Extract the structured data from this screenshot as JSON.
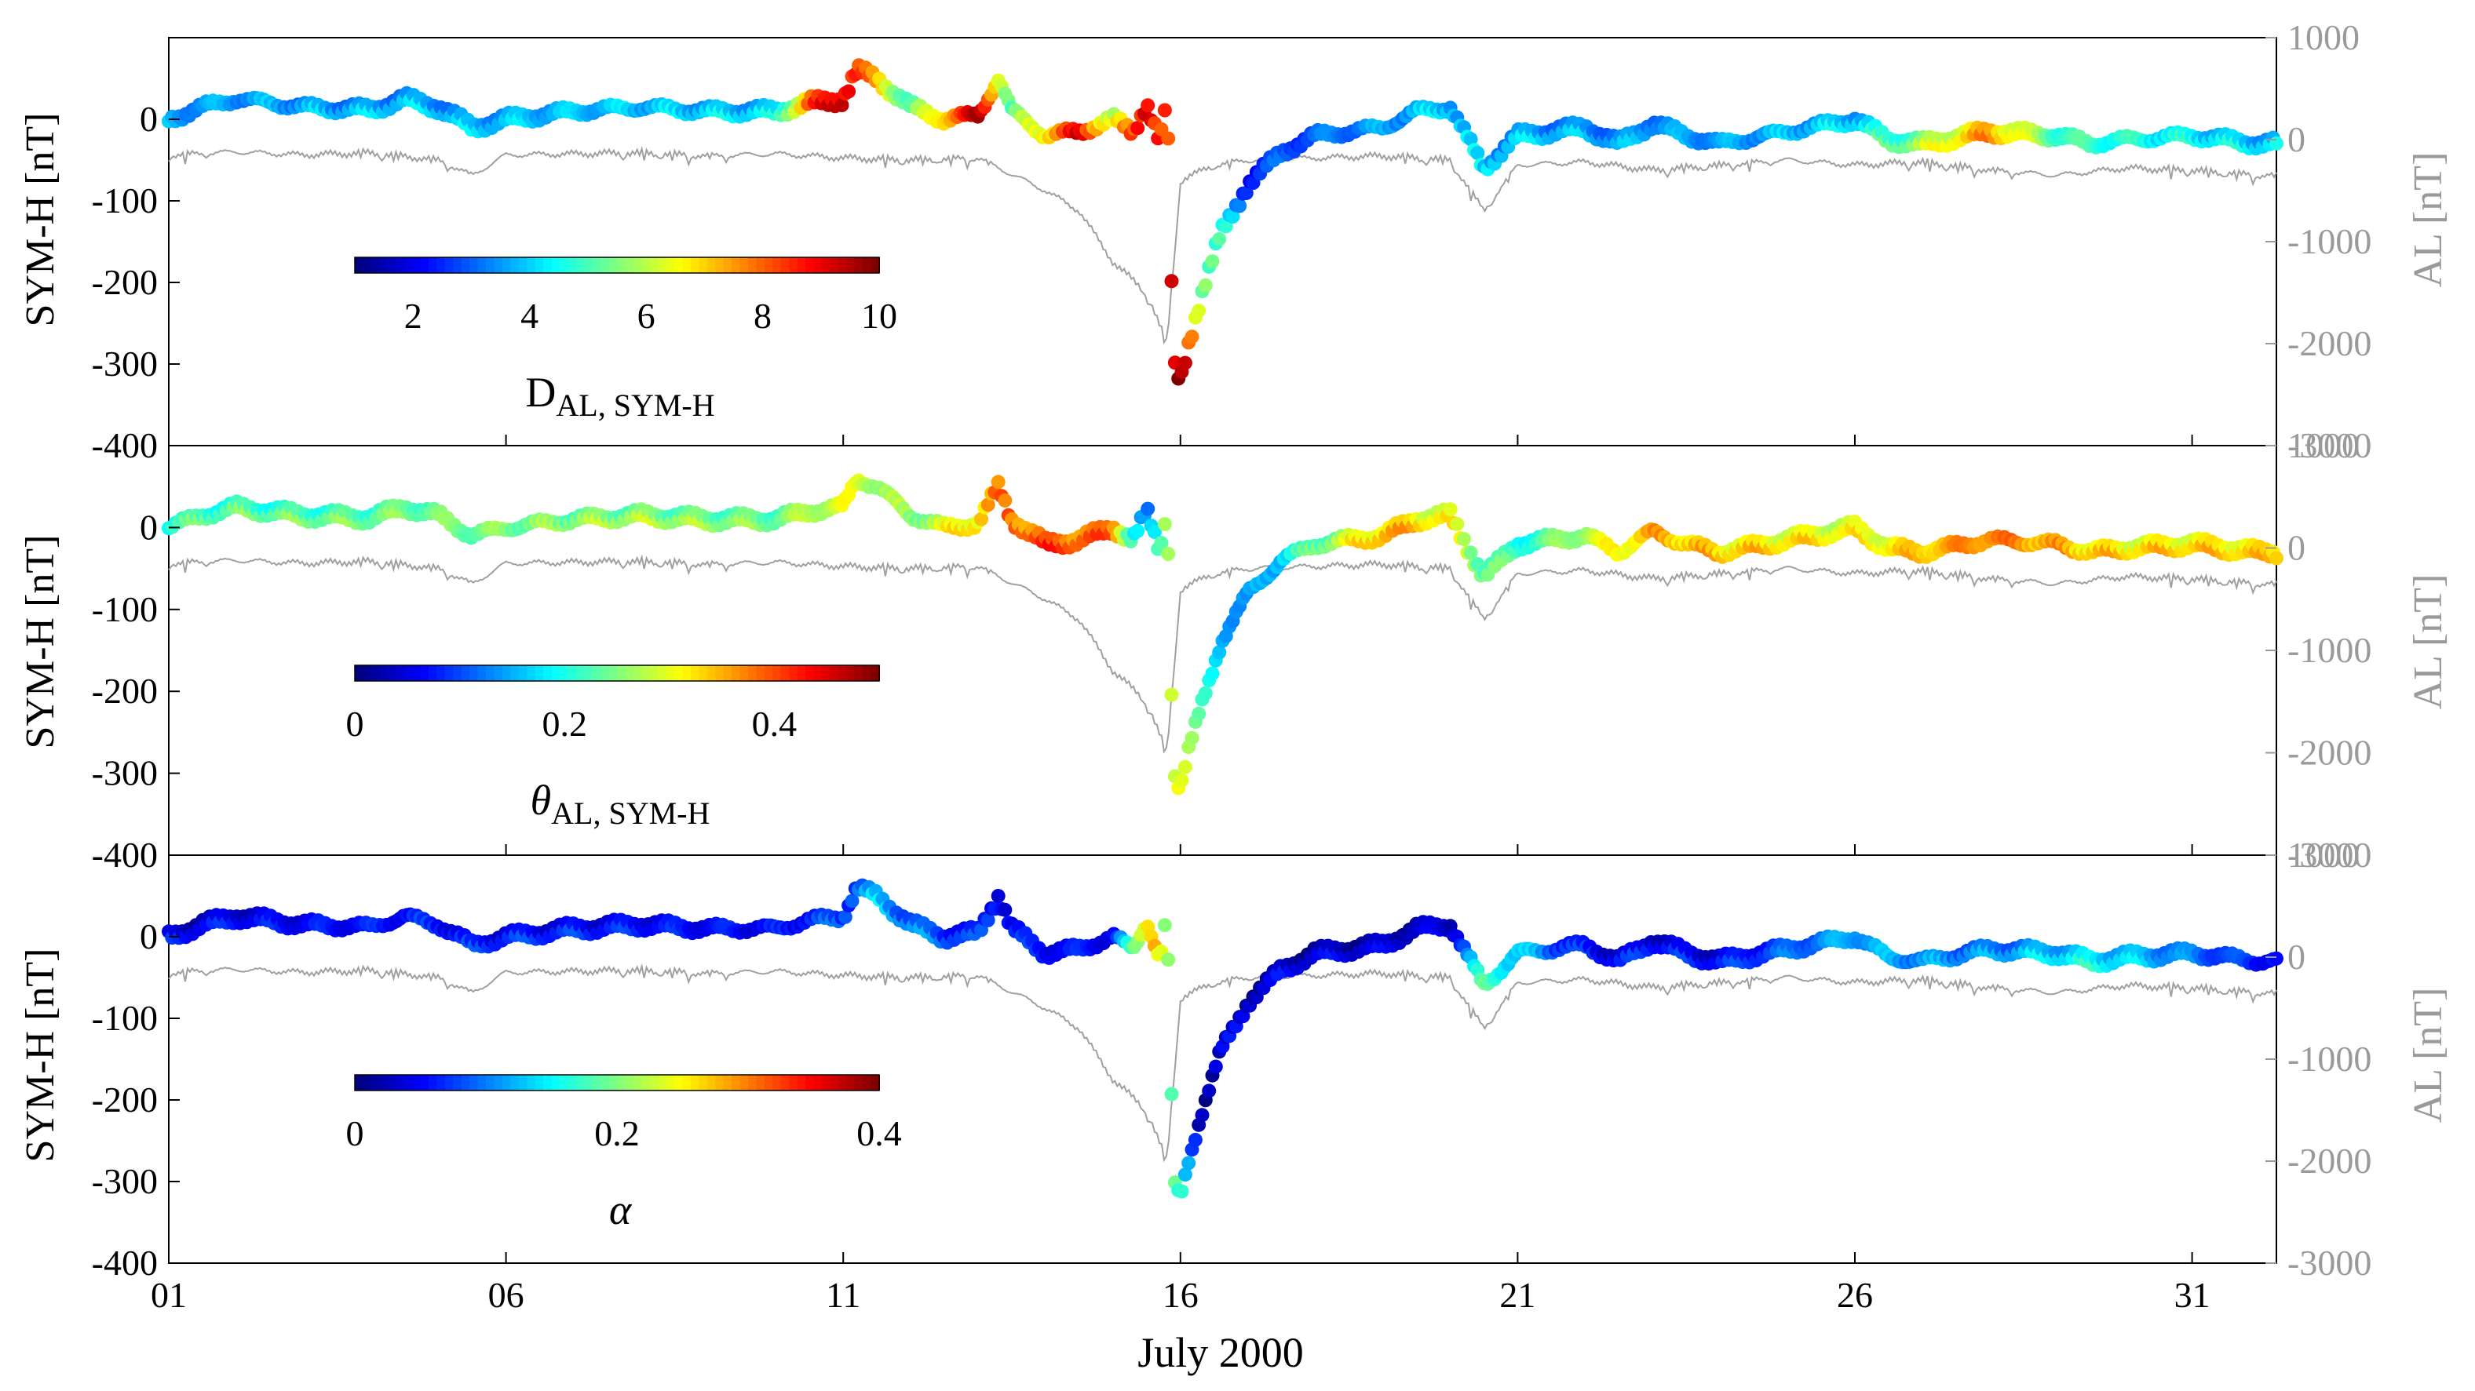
{
  "chart_data": {
    "type": "scatter",
    "xlabel": "July 2000",
    "x_range_days": [
      1,
      32.25
    ],
    "x_tick_labels": [
      "01",
      "06",
      "11",
      "16",
      "21",
      "26",
      "31"
    ],
    "x_tick_days": [
      1,
      6,
      11,
      16,
      21,
      26,
      31
    ],
    "left_axis": {
      "label": "SYM-H [nT]",
      "range": [
        -400,
        100
      ],
      "tick_values": [
        0,
        -100,
        -200,
        -300,
        -400
      ],
      "tick_labels": [
        "0",
        "-100",
        "-200",
        "-300",
        "-400"
      ]
    },
    "right_axis": {
      "label": "AL [nT]",
      "color": "#9a9a9a",
      "range": [
        -3000,
        1000
      ],
      "tick_values": [
        1000,
        0,
        -1000,
        -2000,
        -3000
      ],
      "tick_labels": [
        "1000",
        "0",
        "-1000",
        "-2000",
        "-3000"
      ]
    },
    "sym_h_profile": {
      "day": [
        1,
        1.5,
        2,
        3,
        4,
        4.5,
        5,
        5.5,
        6,
        7,
        8,
        9,
        10,
        10.5,
        11,
        11.2,
        11.5,
        12,
        12.5,
        13,
        13.3,
        13.5,
        14,
        14.5,
        15,
        15.3,
        15.5,
        15.7,
        15.8,
        15.9,
        16.0,
        16.1,
        16.3,
        16.6,
        17,
        17.5,
        18,
        19,
        19.5,
        20,
        20.5,
        21,
        22,
        22.5,
        23,
        23.5,
        24,
        25,
        26,
        26.5,
        27,
        28,
        29,
        29.5,
        30,
        31,
        32
      ],
      "value": [
        0,
        15,
        25,
        15,
        12,
        25,
        15,
        -10,
        0,
        10,
        15,
        10,
        10,
        20,
        25,
        60,
        50,
        15,
        0,
        5,
        50,
        10,
        -20,
        -15,
        0,
        -15,
        20,
        -30,
        30,
        -300,
        -320,
        -280,
        -220,
        -140,
        -80,
        -40,
        -20,
        -10,
        10,
        15,
        -60,
        -20,
        -10,
        -30,
        -5,
        -20,
        -30,
        -15,
        0,
        -25,
        -30,
        -15,
        -20,
        -30,
        -25,
        -20,
        -30
      ]
    },
    "al_profile": {
      "day": [
        1,
        2,
        3,
        4,
        5,
        5.5,
        6,
        7,
        8,
        9,
        10,
        11,
        12,
        13,
        14,
        14.5,
        15,
        15.5,
        15.8,
        16,
        16.5,
        17,
        18,
        19,
        20,
        20.5,
        21,
        22,
        23,
        24,
        25,
        26,
        27,
        28,
        29,
        30,
        31,
        32
      ],
      "value": [
        -150,
        -120,
        -150,
        -130,
        -200,
        -350,
        -150,
        -140,
        -130,
        -160,
        -140,
        -180,
        -200,
        -180,
        -500,
        -700,
        -1200,
        -1500,
        -2000,
        -400,
        -250,
        -200,
        -180,
        -160,
        -200,
        -700,
        -250,
        -220,
        -300,
        -250,
        -200,
        -250,
        -220,
        -300,
        -350,
        -280,
        -300,
        -350
      ]
    },
    "panels": [
      {
        "colorbar_label": "D",
        "colorbar_label_sub": "AL, SYM-H",
        "colorbar_range": [
          1,
          10
        ],
        "colorbar_ticks": [
          2,
          4,
          6,
          8,
          10
        ],
        "colorbar_tick_labels": [
          "2",
          "4",
          "6",
          "8",
          "10"
        ],
        "colormap": "jet",
        "color_value_profile": {
          "day": [
            1,
            10,
            10.5,
            11,
            11.5,
            12,
            13,
            13.5,
            14,
            14.5,
            15,
            15.5,
            15.8,
            16.0,
            16.3,
            17,
            20,
            22,
            24,
            26,
            28,
            29,
            32
          ],
          "value": [
            3.5,
            4,
            8,
            9.5,
            7,
            5,
            9.5,
            5,
            7,
            9,
            6,
            9.5,
            8,
            9.8,
            6,
            2.5,
            4,
            3.5,
            3.5,
            4,
            7.5,
            5,
            4
          ]
        }
      },
      {
        "colorbar_label": "θ",
        "colorbar_label_sub": "AL, SYM-H",
        "colorbar_range": [
          0,
          0.5
        ],
        "colorbar_ticks": [
          0,
          0.2,
          0.4
        ],
        "colorbar_tick_labels": [
          "0",
          "0.2",
          "0.4"
        ],
        "colormap": "jet",
        "color_value_profile": {
          "day": [
            1,
            8,
            10,
            11,
            12,
            13.5,
            14,
            15,
            15.5,
            15.8,
            16.0,
            16.3,
            17,
            19,
            20,
            21,
            23,
            26,
            28,
            30,
            32
          ],
          "value": [
            0.22,
            0.26,
            0.24,
            0.3,
            0.25,
            0.38,
            0.4,
            0.38,
            0.1,
            0.28,
            0.33,
            0.2,
            0.12,
            0.35,
            0.3,
            0.2,
            0.35,
            0.3,
            0.38,
            0.32,
            0.33
          ]
        }
      },
      {
        "colorbar_label": "α",
        "colorbar_label_sub": "",
        "colorbar_range": [
          0,
          0.4
        ],
        "colorbar_ticks": [
          0,
          0.2,
          0.4
        ],
        "colorbar_tick_labels": [
          "0",
          "0.2",
          "0.4"
        ],
        "colormap": "jet",
        "color_value_profile": {
          "day": [
            1,
            5,
            10,
            11,
            11.5,
            13,
            15,
            15.6,
            15.8,
            16.0,
            16.3,
            20,
            20.5,
            22,
            24,
            26,
            28,
            29.5,
            32
          ],
          "value": [
            0.04,
            0.06,
            0.05,
            0.08,
            0.12,
            0.06,
            0.05,
            0.3,
            0.2,
            0.15,
            0.03,
            0.03,
            0.18,
            0.05,
            0.05,
            0.12,
            0.1,
            0.15,
            0.06
          ]
        }
      }
    ]
  }
}
